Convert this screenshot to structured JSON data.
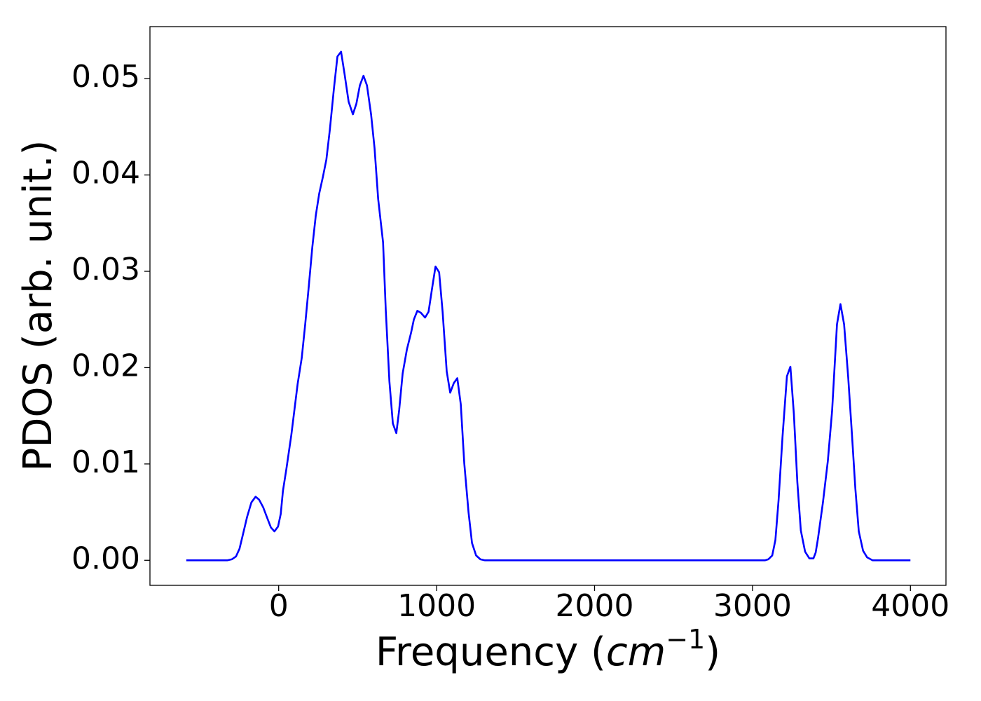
{
  "chart_data": {
    "type": "line",
    "xlabel": [
      "Frequency (",
      "cm",
      "−1",
      ")"
    ],
    "ylabel": "PDOS (arb. unit.)",
    "xlim": [
      -815,
      4225
    ],
    "ylim": [
      -0.0026,
      0.0554
    ],
    "xticks": [
      0,
      1000,
      2000,
      3000,
      4000
    ],
    "yticks": [
      {
        "value": 0,
        "label": "0.00"
      },
      0.01,
      0.02,
      0.03,
      0.04,
      0.05
    ],
    "grid": false,
    "series": [
      {
        "color": "#0000ff",
        "x": [
          -585,
          -324,
          -297,
          -270,
          -248,
          -226,
          -200,
          -173,
          -146,
          -124,
          -98,
          -75,
          -49,
          -27,
          -4,
          13,
          27,
          49,
          80,
          120,
          146,
          168,
          191,
          213,
          235,
          257,
          280,
          302,
          324,
          350,
          372,
          395,
          417,
          443,
          470,
          492,
          514,
          537,
          559,
          585,
          607,
          630,
          661,
          678,
          701,
          723,
          745,
          763,
          785,
          812,
          838,
          856,
          878,
          900,
          927,
          949,
          971,
          993,
          1016,
          1038,
          1064,
          1086,
          1109,
          1131,
          1153,
          1175,
          1202,
          1224,
          1250,
          1277,
          1304,
          3080,
          3100,
          3125,
          3145,
          3165,
          3190,
          3218,
          3240,
          3262,
          3284,
          3306,
          3333,
          3360,
          3386,
          3400,
          3415,
          3446,
          3477,
          3504,
          3535,
          3557,
          3580,
          3606,
          3630,
          3651,
          3673,
          3700,
          3726,
          3760,
          4000
        ],
        "values": [
          0,
          0,
          0.0001,
          0.0004,
          0.0012,
          0.0027,
          0.0045,
          0.006,
          0.0066,
          0.0063,
          0.0055,
          0.0045,
          0.0034,
          0.003,
          0.0035,
          0.0048,
          0.0072,
          0.0095,
          0.013,
          0.0183,
          0.021,
          0.0245,
          0.0285,
          0.0325,
          0.0358,
          0.0381,
          0.0398,
          0.0416,
          0.0447,
          0.049,
          0.0523,
          0.0528,
          0.0505,
          0.0476,
          0.0463,
          0.0474,
          0.0493,
          0.0503,
          0.0493,
          0.0463,
          0.0428,
          0.0375,
          0.033,
          0.026,
          0.0186,
          0.0142,
          0.0132,
          0.0156,
          0.0194,
          0.0219,
          0.0236,
          0.025,
          0.0259,
          0.0257,
          0.0252,
          0.0258,
          0.0282,
          0.0305,
          0.0299,
          0.0258,
          0.0196,
          0.0174,
          0.0184,
          0.0189,
          0.0162,
          0.0101,
          0.005,
          0.0018,
          0.0005,
          0.0001,
          0,
          0,
          0.0001,
          0.0005,
          0.0021,
          0.0062,
          0.0128,
          0.0191,
          0.0201,
          0.0152,
          0.0081,
          0.0031,
          0.0009,
          0.0002,
          0.0002,
          0.0008,
          0.0023,
          0.006,
          0.0103,
          0.0155,
          0.0245,
          0.0266,
          0.0245,
          0.019,
          0.013,
          0.0075,
          0.003,
          0.001,
          0.0003,
          0,
          0
        ]
      }
    ]
  }
}
